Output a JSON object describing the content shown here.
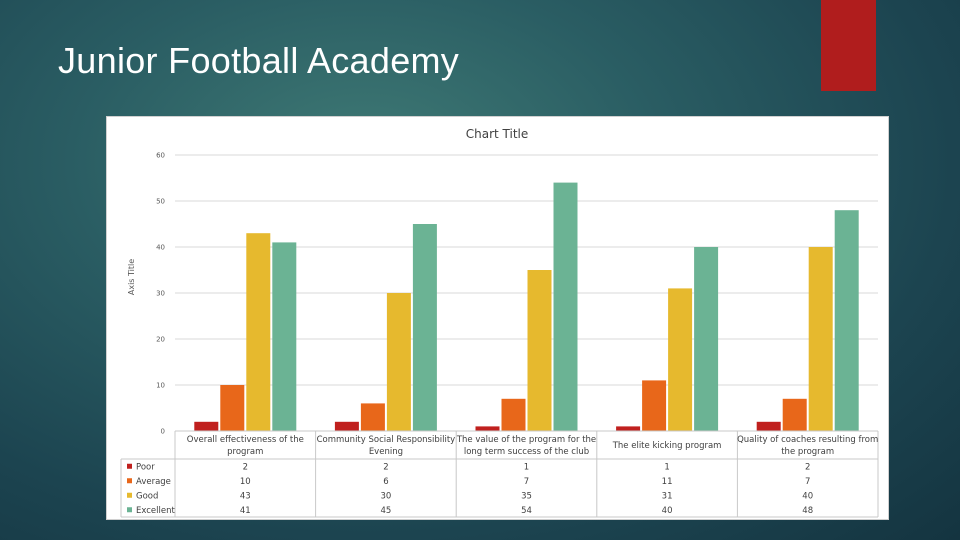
{
  "slide": {
    "title": "Junior Football Academy",
    "accent_color": "#b01d1d"
  },
  "chart_data": {
    "type": "bar",
    "title": "Chart Title",
    "xlabel": "",
    "ylabel": "Axis Title",
    "ylim": [
      0,
      60
    ],
    "yticks": [
      0,
      10,
      20,
      30,
      40,
      50,
      60
    ],
    "grid": true,
    "legend": "data-table",
    "categories": [
      [
        "Overall effectiveness of the",
        "program"
      ],
      [
        "Community Social Responsibility",
        "Evening"
      ],
      [
        "The value of the program for the",
        "long term success of the club"
      ],
      [
        "The elite kicking program"
      ],
      [
        "Quality of coaches resulting from",
        "the program"
      ]
    ],
    "series": [
      {
        "name": "Poor",
        "color": "#c0201e",
        "values": [
          2,
          2,
          1,
          1,
          2
        ]
      },
      {
        "name": "Average",
        "color": "#e8671a",
        "values": [
          10,
          6,
          7,
          11,
          7
        ]
      },
      {
        "name": "Good",
        "color": "#e6b92e",
        "values": [
          43,
          30,
          35,
          31,
          40
        ]
      },
      {
        "name": "Excellent",
        "color": "#6bb394",
        "values": [
          41,
          45,
          54,
          40,
          48
        ]
      }
    ]
  }
}
